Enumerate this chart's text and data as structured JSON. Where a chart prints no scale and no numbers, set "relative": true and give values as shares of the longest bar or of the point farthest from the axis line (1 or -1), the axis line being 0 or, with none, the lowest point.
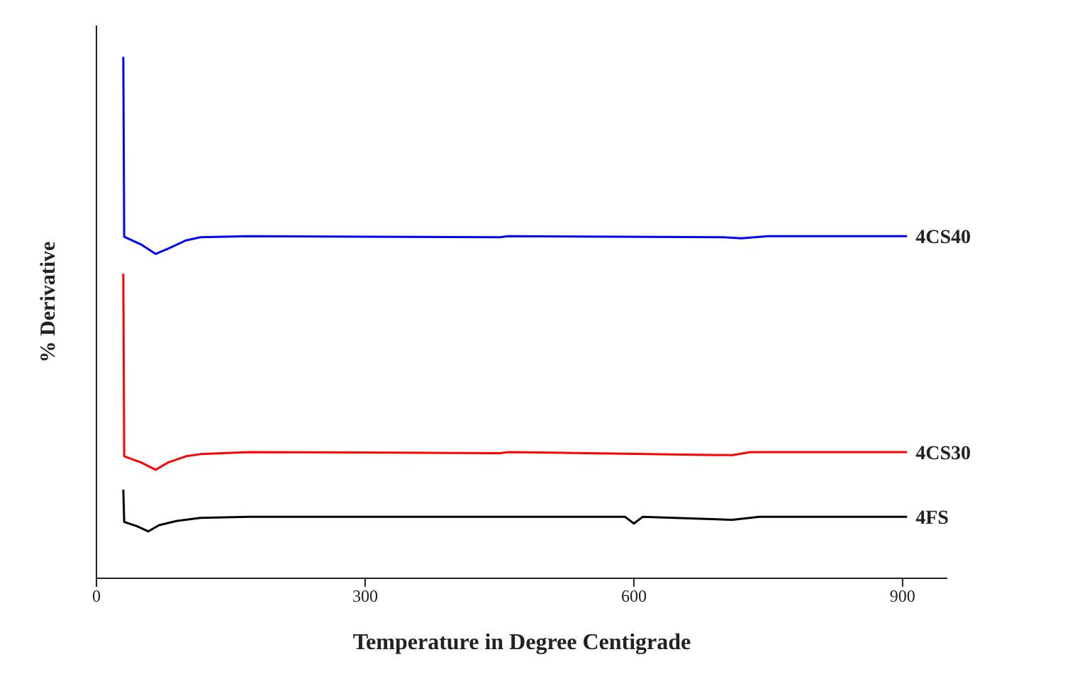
{
  "chart_data": {
    "type": "line",
    "relative": true,
    "xlabel": "Temperature in Degree Centigrade",
    "ylabel": "% Derivative",
    "xlim": [
      0,
      950
    ],
    "xticks": [
      0,
      300,
      600,
      900
    ],
    "legend": false,
    "grid": false,
    "marker": "none",
    "line_style": "solid",
    "tick_labels": "x",
    "series": [
      {
        "name": "4CS40",
        "color": "#0000ff",
        "x": [
          30,
          31,
          50,
          66,
          80,
          100,
          116,
          170,
          450,
          460,
          700,
          720,
          750,
          905
        ],
        "values": [
          1.0,
          0.655,
          0.64,
          0.622,
          0.632,
          0.648,
          0.654,
          0.656,
          0.654,
          0.656,
          0.654,
          0.652,
          0.656,
          0.656
        ]
      },
      {
        "name": "4CS30",
        "color": "#ff0000",
        "x": [
          30,
          31,
          50,
          66,
          80,
          100,
          116,
          170,
          450,
          460,
          710,
          730,
          905
        ],
        "values": [
          0.584,
          0.234,
          0.222,
          0.208,
          0.222,
          0.234,
          0.238,
          0.242,
          0.24,
          0.242,
          0.236,
          0.242,
          0.242
        ]
      },
      {
        "name": "4FS",
        "color": "#000000",
        "x": [
          30,
          31,
          45,
          58,
          70,
          90,
          116,
          170,
          590,
          600,
          610,
          710,
          740,
          905
        ],
        "values": [
          0.17,
          0.108,
          0.1,
          0.09,
          0.102,
          0.11,
          0.116,
          0.118,
          0.118,
          0.105,
          0.118,
          0.112,
          0.118,
          0.118
        ]
      }
    ]
  }
}
